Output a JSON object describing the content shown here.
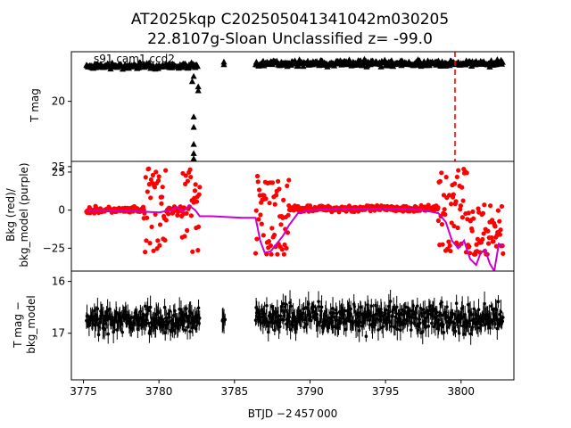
{
  "chart_data": [
    {
      "type": "scatter",
      "title": "AT2025kqp  C202505041341042m030205\n22.8107g-Sloan Unclassified z= -99.0",
      "title_lines": [
        "AT2025kqp  C202505041341042m030205",
        "22.8107g-Sloan Unclassified z= -99.0"
      ],
      "annotation": "s91 cam1 ccd2",
      "ylabel": "T mag",
      "xlim": [
        3774.2,
        3803.5
      ],
      "ylim": [
        16.2,
        24.6
      ],
      "y_inverted": true,
      "yticks": [
        20,
        25
      ],
      "ytick_labels": [
        "20",
        "25"
      ],
      "marker_color": "#000000",
      "marker": "triangle",
      "vline": {
        "x": 3799.6,
        "color": "#ff0000",
        "style": "dashed"
      },
      "segments": [
        {
          "x_start": 3775.2,
          "x_end": 3782.6,
          "y": 17.3,
          "spread": 0.3
        },
        {
          "x_start": 3786.4,
          "x_end": 3802.8,
          "y": 17.1,
          "spread": 0.35
        }
      ],
      "points": [
        {
          "x": 3784.3,
          "y": 17.0
        },
        {
          "x": 3784.3,
          "y": 17.2
        },
        {
          "x": 3782.2,
          "y": 18.5
        },
        {
          "x": 3782.3,
          "y": 18.1
        },
        {
          "x": 3782.6,
          "y": 18.9
        },
        {
          "x": 3782.6,
          "y": 19.2
        },
        {
          "x": 3782.3,
          "y": 21.2
        },
        {
          "x": 3782.3,
          "y": 22.0
        },
        {
          "x": 3782.3,
          "y": 23.3
        },
        {
          "x": 3782.3,
          "y": 24.0
        },
        {
          "x": 3782.3,
          "y": 24.4
        }
      ]
    },
    {
      "type": "scatter",
      "ylabel": "Bkg (red)/\nbkg_model (purple)",
      "ylabel_lines": [
        "Bkg (red)/",
        "bkg_model (purple)"
      ],
      "xlim": [
        3774.2,
        3803.5
      ],
      "ylim": [
        -40,
        32
      ],
      "yticks": [
        25,
        0,
        -25
      ],
      "ytick_labels": [
        "25",
        "0",
        "−25"
      ],
      "series": [
        {
          "name": "Bkg",
          "color": "#ff0000",
          "kind": "points"
        },
        {
          "name": "bkg_model",
          "color": "#cc00cc",
          "kind": "line",
          "x": [
            3775.2,
            3776.5,
            3778.0,
            3779.0,
            3780.0,
            3780.8,
            3781.2,
            3781.6,
            3782.0,
            3782.4,
            3782.7,
            3783.5,
            3784.5,
            3785.5,
            3786.4,
            3786.7,
            3787.0,
            3787.4,
            3787.8,
            3788.2,
            3788.6,
            3789.2,
            3790.0,
            3792.0,
            3794.0,
            3796.0,
            3797.5,
            3798.5,
            3799.0,
            3799.4,
            3799.8,
            3800.2,
            3800.6,
            3801.0,
            3801.3,
            3801.6,
            3801.9,
            3802.2,
            3802.5,
            3802.8
          ],
          "y": [
            0,
            0,
            -0.5,
            -1,
            -1.5,
            0,
            2,
            -1,
            3,
            0,
            -4,
            -4,
            -4.5,
            -5,
            -5,
            -20,
            -28,
            -27,
            -22,
            -17,
            -10,
            -2,
            0,
            1,
            1,
            1,
            0,
            -2,
            -8,
            -20,
            -25,
            -20,
            -32,
            -36,
            -28,
            -26,
            -35,
            -40,
            -22,
            -24
          ]
        }
      ],
      "bkg_segments": [
        {
          "x_start": 3775.2,
          "x_end": 3779.0,
          "y": 0,
          "spread": 3
        },
        {
          "x_start": 3779.0,
          "x_end": 3780.5,
          "y": 0,
          "spread": 28
        },
        {
          "x_start": 3780.5,
          "x_end": 3781.5,
          "y": 0,
          "spread": 4
        },
        {
          "x_start": 3781.5,
          "x_end": 3782.7,
          "y": 0,
          "spread": 28
        },
        {
          "x_start": 3786.4,
          "x_end": 3788.6,
          "y": -5,
          "spread": 28
        },
        {
          "x_start": 3788.6,
          "x_end": 3798.5,
          "y": 1,
          "spread": 3
        },
        {
          "x_start": 3798.5,
          "x_end": 3800.5,
          "y": 0,
          "spread": 28
        },
        {
          "x_start": 3800.5,
          "x_end": 3802.8,
          "y": -15,
          "spread": 20
        }
      ]
    },
    {
      "type": "scatter",
      "ylabel": "T mag −\nbkg_model",
      "ylabel_lines": [
        "T mag −",
        "bkg_model"
      ],
      "xlabel": "BTJD −2 457 000",
      "xlim": [
        3774.2,
        3803.5
      ],
      "ylim": [
        15.8,
        17.9
      ],
      "y_inverted": true,
      "yticks": [
        16,
        17
      ],
      "ytick_labels": [
        "16",
        "17"
      ],
      "xticks": [
        3775,
        3780,
        3785,
        3790,
        3795,
        3800
      ],
      "xtick_labels": [
        "3775",
        "3780",
        "3785",
        "3790",
        "3795",
        "3800"
      ],
      "marker_color": "#000000",
      "segments": [
        {
          "x_start": 3775.2,
          "x_end": 3782.7,
          "y": 16.75,
          "spread": 0.35
        },
        {
          "x_start": 3784.2,
          "x_end": 3784.4,
          "y": 16.7,
          "spread": 0.15
        },
        {
          "x_start": 3786.4,
          "x_end": 3802.8,
          "y": 16.7,
          "spread": 0.4
        }
      ]
    }
  ]
}
